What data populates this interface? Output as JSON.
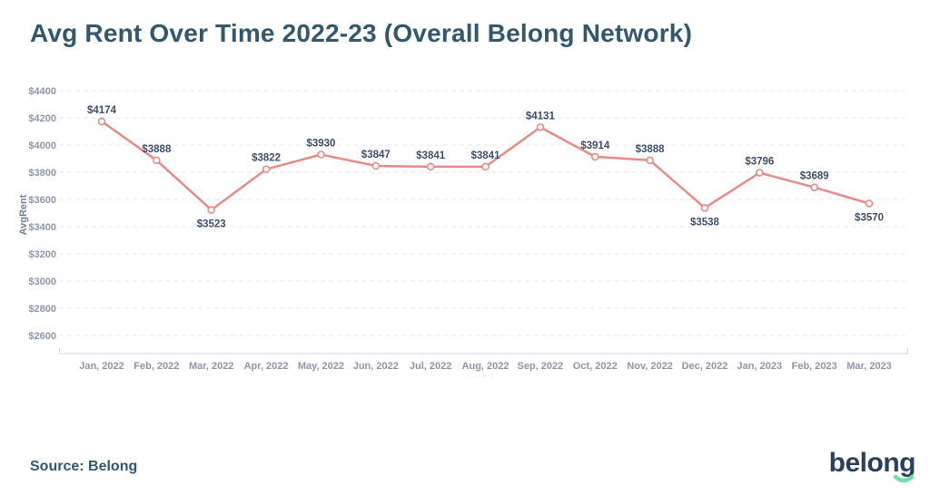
{
  "header": {
    "title": "Avg Rent Over Time 2022-23 (Overall Belong Network)"
  },
  "footer": {
    "source_label": "Source: Belong",
    "logo_text": "belong"
  },
  "colors": {
    "title": "#33576e",
    "line": "#e98b85",
    "marker_fill": "#ffffff",
    "data_label": "#3f4e6e",
    "tick_label": "#8d96ab",
    "axis_title": "#76809b",
    "gridline": "#e4e7ee",
    "axis_line": "#d3d7e0",
    "logo_text": "#2b3f60",
    "logo_smile": "#6ce0a6"
  },
  "chart_data": {
    "type": "line",
    "title": "Avg Rent Over Time 2022-23 (Overall Belong Network)",
    "xlabel": "",
    "ylabel": "AvgRent",
    "x": [
      "Jan, 2022",
      "Feb, 2022",
      "Mar, 2022",
      "Apr, 2022",
      "May, 2022",
      "Jun, 2022",
      "Jul, 2022",
      "Aug, 2022",
      "Sep, 2022",
      "Oct, 2022",
      "Nov, 2022",
      "Dec, 2022",
      "Jan, 2023",
      "Feb, 2023",
      "Mar, 2023"
    ],
    "values": [
      4174,
      3888,
      3523,
      3822,
      3930,
      3847,
      3841,
      3841,
      4131,
      3914,
      3888,
      3538,
      3796,
      3689,
      3570
    ],
    "value_prefix": "$",
    "y_ticks": [
      2600,
      2800,
      3000,
      3200,
      3400,
      3600,
      3800,
      4000,
      4200,
      4400
    ],
    "ylim": [
      2600,
      4400
    ],
    "grid": true,
    "grid_style": "dashed",
    "legend": "none",
    "labels_below_indices": [
      2,
      11,
      14
    ],
    "x_axis_note": "· ·  · ·"
  }
}
